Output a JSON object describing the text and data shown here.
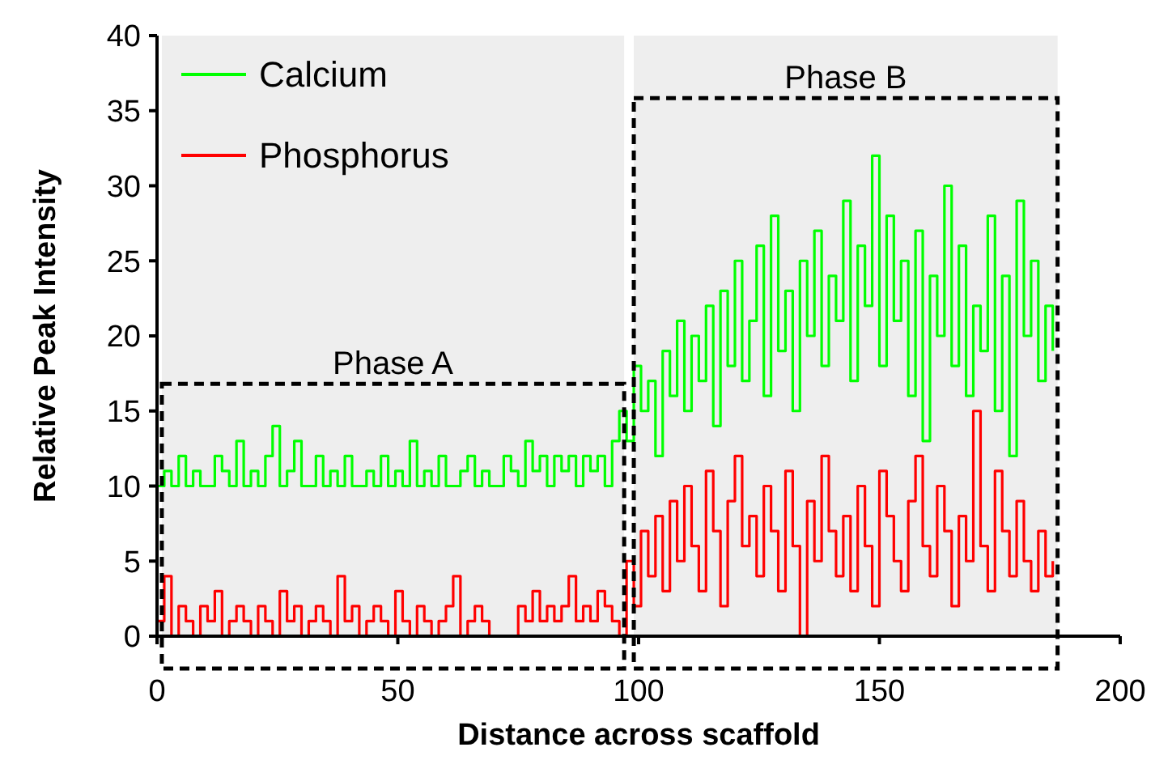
{
  "chart_data": {
    "type": "step",
    "xlabel": "Distance across scaffold",
    "ylabel": "Relative Peak Intensity",
    "x": [
      0,
      1.5,
      3,
      4.5,
      6,
      7.5,
      9,
      10.5,
      12,
      13.5,
      15,
      16.5,
      18,
      19.5,
      21,
      22.5,
      24,
      25.5,
      27,
      28.5,
      30,
      31.5,
      33,
      34.5,
      36,
      37.5,
      39,
      40.5,
      42,
      43.5,
      45,
      46.5,
      48,
      49.5,
      51,
      52.5,
      54,
      55.5,
      57,
      58.5,
      60,
      61.5,
      63,
      64.5,
      66,
      67.5,
      69,
      70.5,
      72,
      73.5,
      75,
      76.5,
      78,
      79.5,
      81,
      82.5,
      84,
      85.5,
      87,
      88.5,
      90,
      91.5,
      93,
      94.5,
      96,
      97.5,
      99,
      100.5,
      102,
      103.5,
      105,
      106.5,
      108,
      109.5,
      111,
      112.5,
      114,
      115.5,
      117,
      118.5,
      120,
      121.5,
      123,
      124.5,
      126,
      127.5,
      129,
      130.5,
      132,
      133.5,
      135,
      136.5,
      138,
      139.5,
      141,
      142.5,
      144,
      145.5,
      147,
      148.5,
      150,
      151.5,
      153,
      154.5,
      156,
      157.5,
      159,
      160.5,
      162,
      163.5,
      165,
      166.5,
      168,
      169.5,
      171,
      172.5,
      174,
      175.5,
      177,
      178.5,
      180,
      181.5,
      183,
      184.5,
      186
    ],
    "series": [
      {
        "name": "Calcium",
        "color": "#00ff00",
        "values": [
          10,
          11,
          10,
          12,
          10,
          11,
          10,
          10,
          12,
          11,
          10,
          13,
          10,
          11,
          10,
          12,
          14,
          10,
          11,
          13,
          10,
          10,
          12,
          10,
          11,
          10,
          12,
          10,
          10,
          11,
          10,
          12,
          10,
          11,
          10,
          13,
          10,
          11,
          10,
          12,
          10,
          10,
          11,
          12,
          10,
          11,
          10,
          10,
          12,
          11,
          10,
          13,
          11,
          12,
          10,
          12,
          11,
          12,
          10,
          12,
          11,
          12,
          10,
          13,
          15,
          13,
          18,
          15,
          17,
          12,
          19,
          16,
          21,
          15,
          20,
          17,
          22,
          14,
          23,
          18,
          25,
          17,
          21,
          26,
          16,
          28,
          19,
          23,
          15,
          25,
          20,
          27,
          18,
          24,
          21,
          29,
          17,
          26,
          22,
          32,
          18,
          28,
          21,
          25,
          16,
          27,
          13,
          24,
          20,
          30,
          18,
          26,
          16,
          22,
          19,
          28,
          15,
          24,
          12,
          29,
          20,
          25,
          17,
          22,
          19
        ]
      },
      {
        "name": "Phosphorus",
        "color": "#ff0000",
        "values": [
          1,
          4,
          0,
          2,
          1,
          0,
          2,
          1,
          3,
          0,
          1,
          2,
          1,
          0,
          2,
          1,
          0,
          3,
          1,
          2,
          0,
          1,
          2,
          1,
          0,
          4,
          1,
          2,
          0,
          1,
          2,
          1,
          0,
          3,
          1,
          0,
          2,
          1,
          0,
          1,
          2,
          4,
          0,
          1,
          2,
          1,
          0,
          0,
          0,
          0,
          2,
          1,
          3,
          1,
          2,
          1,
          2,
          4,
          1,
          2,
          1,
          3,
          2,
          1,
          0,
          5,
          2,
          7,
          4,
          8,
          3,
          9,
          5,
          10,
          6,
          3,
          11,
          7,
          2,
          9,
          12,
          6,
          8,
          4,
          10,
          7,
          3,
          11,
          6,
          0,
          9,
          5,
          12,
          7,
          4,
          8,
          3,
          10,
          6,
          2,
          11,
          8,
          5,
          3,
          9,
          12,
          6,
          4,
          10,
          7,
          2,
          8,
          5,
          15,
          6,
          3,
          11,
          7,
          4,
          9,
          5,
          3,
          7,
          4,
          5
        ]
      }
    ],
    "xlim": [
      0,
      200
    ],
    "xticks": [
      0,
      50,
      100,
      150,
      200
    ],
    "ylim": [
      0,
      40
    ],
    "yticks": [
      0,
      5,
      10,
      15,
      20,
      25,
      30,
      35,
      40
    ],
    "bands": [
      {
        "axis": "x",
        "from": 1,
        "to": 97,
        "label": "Phase A"
      },
      {
        "axis": "x",
        "from": 99,
        "to": 187,
        "label": "Phase B"
      }
    ],
    "legend": "top left",
    "grid": false
  }
}
